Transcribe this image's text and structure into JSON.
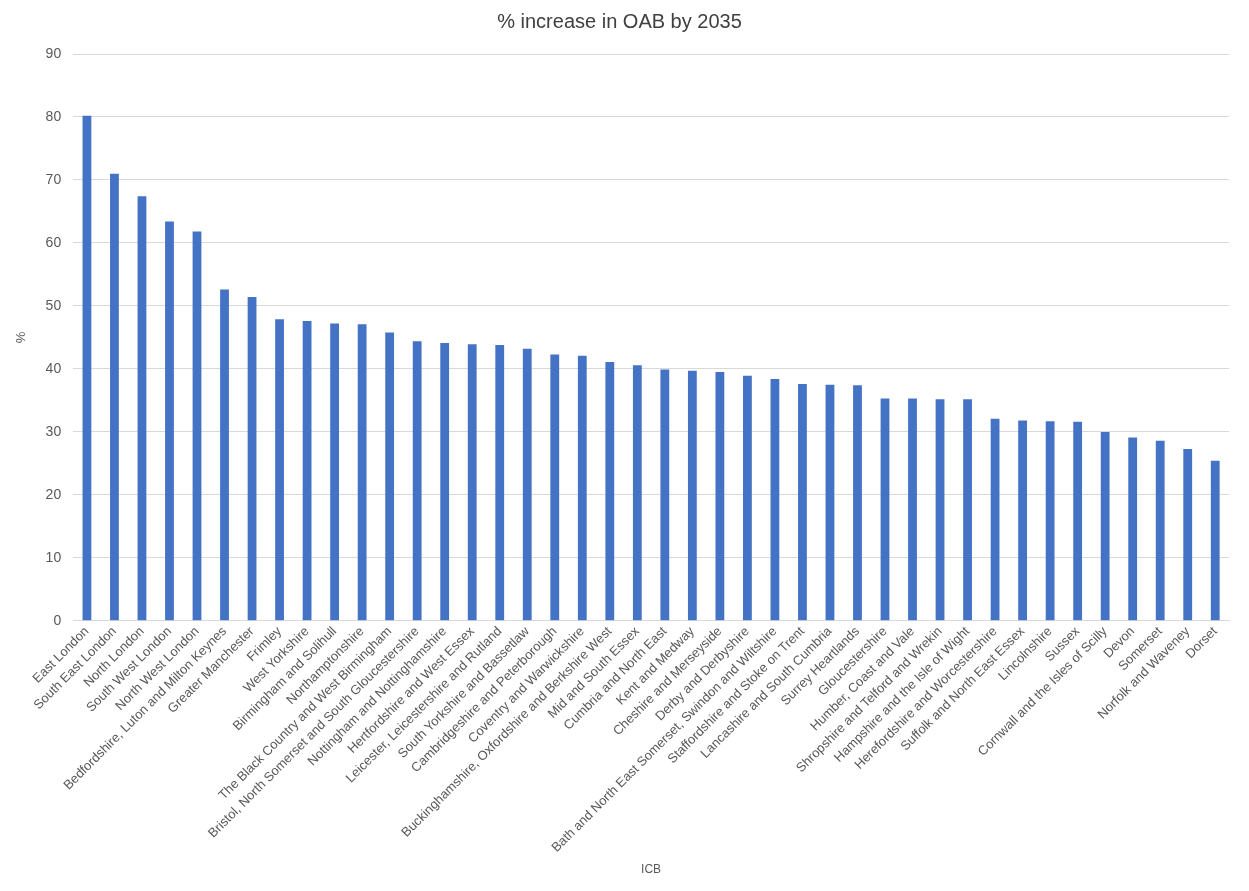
{
  "chart_data": {
    "type": "bar",
    "title": "% increase in OAB by 2035",
    "xlabel": "ICB",
    "ylabel": "%",
    "categories": [
      "East London",
      "South East London",
      "North London",
      "South West London",
      "North West London",
      "Bedfordshire, Luton and Milton Keynes",
      "Greater Manchester",
      "Frimley",
      "West Yorkshire",
      "Birmingham and Solihull",
      "Northamptonshire",
      "The Black Country and West Birmingham",
      "Bristol, North Somerset and South Gloucestershire",
      "Nottingham and Nottinghamshire",
      "Hertfordshire and West Essex",
      "Leicester, Leicestershire and Rutland",
      "South Yorkshire and Bassetlaw",
      "Cambridgeshire and Peterborough",
      "Coventry and Warwickshire",
      "Buckinghamshire, Oxfordshire and Berkshire West",
      "Mid and South Essex",
      "Cumbria and North East",
      "Kent and Medway",
      "Cheshire and Merseyside",
      "Derby and Derbyshire",
      "Bath and North East Somerset, Swindon and Wiltshire",
      "Staffordshire and Stoke on Trent",
      "Lancashire and South Cumbria",
      "Surrey Heartlands",
      "Gloucestershire",
      "Humber, Coast and Vale",
      "Shropshire and Telford and Wrekin",
      "Hampshire and the Isle of Wight",
      "Herefordshire and Worcestershire",
      "Suffolk and North East Essex",
      "Lincolnshire",
      "Sussex",
      "Cornwall and the Isles of Scilly",
      "Devon",
      "Somerset",
      "Norfolk and Waveney",
      "Dorset"
    ],
    "values": [
      80.2,
      71,
      67.4,
      63.4,
      61.8,
      52.6,
      51.4,
      47.9,
      47.6,
      47.2,
      47.1,
      45.8,
      44.4,
      44.1,
      43.9,
      43.8,
      43.2,
      42.3,
      42.1,
      41.1,
      40.6,
      39.9,
      39.7,
      39.5,
      38.9,
      38.4,
      37.6,
      37.5,
      37.4,
      35.3,
      35.3,
      35.2,
      35.2,
      32.1,
      31.8,
      31.7,
      31.6,
      30,
      29.1,
      28.6,
      27.3,
      25.4
    ],
    "color": "#4472c4",
    "ylim": [
      0,
      90
    ],
    "yticks": [
      0,
      10,
      20,
      30,
      40,
      50,
      60,
      70,
      80,
      90
    ],
    "grid": "y",
    "legend": false
  }
}
